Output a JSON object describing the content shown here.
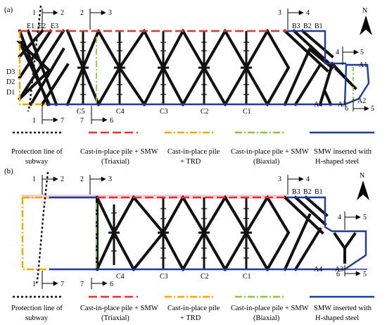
{
  "panels": [
    {
      "label": "(a)",
      "north": "N",
      "section_marks": [
        {
          "left": "1",
          "right": "2"
        },
        {
          "left": "2",
          "right": "3"
        },
        {
          "left": "3",
          "right": "4"
        },
        {
          "left": "4",
          "right": "5"
        },
        {
          "left": "1",
          "right": "7"
        },
        {
          "left": "7",
          "right": "6"
        },
        {
          "left": "6",
          "right": "5"
        }
      ],
      "point_labels": [
        "E1",
        "E2",
        "E3",
        "B3",
        "B2",
        "B1",
        "A1",
        "A2",
        "A3",
        "A4",
        "D3",
        "D2",
        "D1",
        "C5",
        "C4",
        "C3",
        "C2",
        "C1"
      ]
    },
    {
      "label": "(b)",
      "north": "N",
      "section_marks": [
        {
          "left": "1",
          "right": "2"
        },
        {
          "left": "2",
          "right": "3"
        },
        {
          "left": "3",
          "right": "4"
        },
        {
          "left": "4",
          "right": "5"
        },
        {
          "left": "1",
          "right": "7"
        },
        {
          "left": "7",
          "right": "6"
        },
        {
          "left": "6",
          "right": "5"
        }
      ],
      "point_labels": [
        "B3",
        "B2",
        "B1",
        "A4",
        "A3",
        "C4",
        "C3",
        "C2",
        "C1"
      ]
    }
  ],
  "legend": [
    {
      "lines": [
        "Protection line of",
        "subway"
      ],
      "color": "#111111",
      "style": "dotted"
    },
    {
      "lines": [
        "Cast-in-place pile + SMW",
        "(Triaxial)"
      ],
      "color": "#e8312a",
      "style": "dashed"
    },
    {
      "lines": [
        "Cast-in-place pile",
        "+ TRD"
      ],
      "color": "#f2a900",
      "style": "dashdot"
    },
    {
      "lines": [
        "Cast-in-place pile + SMW",
        "(Biaxial)"
      ],
      "color": "#8cc63f",
      "style": "dashdot"
    },
    {
      "lines": [
        "SMW inserted with",
        "H-shaped steel"
      ],
      "color": "#1f3a9c",
      "style": "solid"
    }
  ]
}
